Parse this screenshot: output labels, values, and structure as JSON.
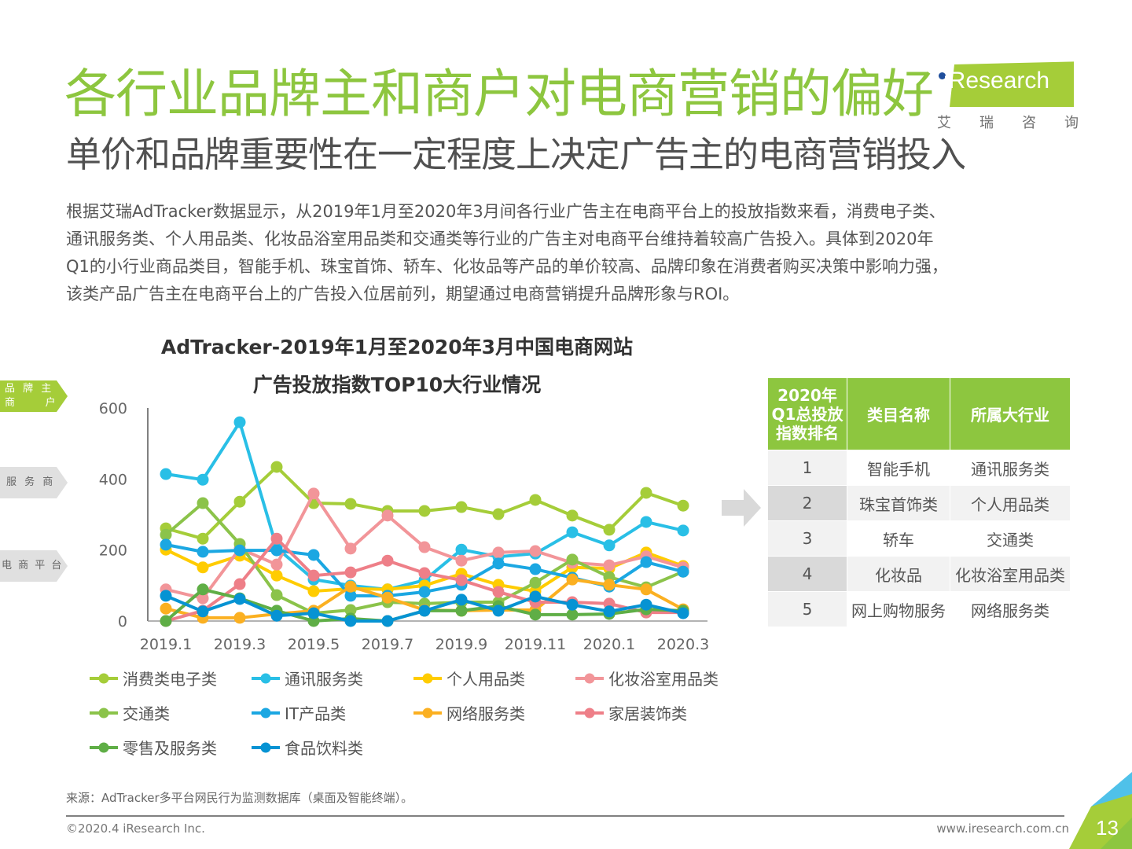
{
  "header": {
    "title": "各行业品牌主和商户对电商营销的偏好",
    "subtitle": "单价和品牌重要性在一定程度上决定广告主的电商营销投入"
  },
  "logo": {
    "brand": "iResearch",
    "cn": [
      "艾",
      "瑞",
      "咨",
      "询"
    ],
    "colors": {
      "green": "#8DC63F",
      "blue": "#1F4E9C"
    }
  },
  "body": {
    "lines": [
      "根据艾瑞AdTracker数据显示，从2019年1月至2020年3月间各行业广告主在电商平台上的投放指数来看，消费电子类、",
      "通讯服务类、个人用品类、化妆品浴室用品类和交通类等行业的广告主对电商平台维持着较高广告投入。具体到2020年",
      "Q1的小行业商品类目，智能手机、珠宝首饰、轿车、化妆品等产品的单价较高、品牌印象在消费者购买决策中影响力强，",
      "该类产品广告主在电商平台上的广告投入位居前列，期望通过电商营销提升品牌形象与ROI。"
    ]
  },
  "side_tags": [
    {
      "label": "品 牌 主",
      "label2": "商     户",
      "color": "#A5CD39",
      "text_color": "#ffffff"
    },
    {
      "label": "服 务 商",
      "color": "#E0E0E0",
      "text_color": "#666666"
    },
    {
      "label": "电 商 平 台",
      "color": "#E0E0E0",
      "text_color": "#666666"
    }
  ],
  "chart_data": {
    "type": "line",
    "title": "AdTracker-2019年1月至2020年3月中国电商网站",
    "title_line2": "广告投放指数TOP10大行业情况",
    "xlabel": "",
    "ylabel": "",
    "x": [
      "2019.1",
      "2019.2",
      "2019.3",
      "2019.4",
      "2019.5",
      "2019.6",
      "2019.7",
      "2019.8",
      "2019.9",
      "2019.10",
      "2019.11",
      "2019.12",
      "2020.1",
      "2020.2",
      "2020.3"
    ],
    "x_tick_labels": [
      "2019.1",
      "2019.3",
      "2019.5",
      "2019.7",
      "2019.9",
      "2019.11",
      "2020.1",
      "2020.3"
    ],
    "y_ticks": [
      "0",
      "200",
      "400",
      "600"
    ],
    "ylim": [
      0,
      600
    ],
    "grid": false,
    "legend_position": "bottom",
    "series": [
      {
        "name": "消费类电子类",
        "color": "#A5CD39",
        "values": [
          261,
          232,
          336,
          434,
          332,
          330,
          310,
          310,
          321,
          301,
          341,
          297,
          257,
          361,
          325
        ]
      },
      {
        "name": "通讯服务类",
        "color": "#29BFE6",
        "values": [
          414,
          398,
          560,
          206,
          117,
          100,
          89,
          115,
          201,
          181,
          190,
          250,
          213,
          279,
          255
        ]
      },
      {
        "name": "个人用品类",
        "color": "#FFCC00",
        "values": [
          201,
          151,
          184,
          128,
          84,
          91,
          89,
          100,
          133,
          102,
          84,
          151,
          148,
          193,
          155
        ]
      },
      {
        "name": "化妆浴室用品类",
        "color": "#F29599",
        "values": [
          89,
          64,
          204,
          159,
          359,
          204,
          297,
          208,
          170,
          193,
          197,
          164,
          157,
          182,
          151
        ]
      },
      {
        "name": "交通类",
        "color": "#8BC34A",
        "values": [
          243,
          332,
          217,
          73,
          22,
          31,
          53,
          49,
          53,
          53,
          108,
          173,
          124,
          95,
          139
        ]
      },
      {
        "name": "IT产品类",
        "color": "#1BA7E2",
        "values": [
          215,
          195,
          199,
          199,
          186,
          71,
          71,
          82,
          102,
          162,
          146,
          122,
          97,
          166,
          139
        ]
      },
      {
        "name": "网络服务类",
        "color": "#FBB021",
        "values": [
          35,
          9,
          9,
          20,
          29,
          97,
          66,
          31,
          29,
          31,
          31,
          117,
          102,
          89,
          33
        ]
      },
      {
        "name": "家居装饰类",
        "color": "#EE7F88",
        "values": [
          0,
          29,
          104,
          232,
          128,
          137,
          170,
          135,
          115,
          82,
          53,
          53,
          49,
          24,
          24
        ]
      },
      {
        "name": "零售及服务类",
        "color": "#5FAE46",
        "values": [
          0,
          89,
          64,
          29,
          0,
          7,
          0,
          29,
          29,
          42,
          18,
          18,
          20,
          33,
          29
        ]
      },
      {
        "name": "食品饮料类",
        "color": "#0693D3",
        "values": [
          71,
          27,
          62,
          15,
          22,
          0,
          0,
          29,
          60,
          29,
          69,
          46,
          27,
          46,
          22
        ]
      }
    ]
  },
  "rank_table": {
    "headers": [
      "2020年\nQ1总投放\n指数排名",
      "类目名称",
      "所属大行业"
    ],
    "header_lines": [
      "2020年",
      "Q1总投放",
      "指数排名"
    ],
    "rows": [
      {
        "rank": "1",
        "category": "智能手机",
        "industry": "通讯服务类"
      },
      {
        "rank": "2",
        "category": "珠宝首饰类",
        "industry": "个人用品类"
      },
      {
        "rank": "3",
        "category": "轿车",
        "industry": "交通类"
      },
      {
        "rank": "4",
        "category": "化妆品",
        "industry": "化妆浴室用品类"
      },
      {
        "rank": "5",
        "category": "网上购物服务",
        "industry": "网络服务类"
      }
    ]
  },
  "footer": {
    "source": "来源：AdTracker多平台网民行为监测数据库（桌面及智能终端）。",
    "copyright": "©2020.4 iResearch Inc.",
    "website": "www.iresearch.com.cn",
    "page_number": "13"
  }
}
